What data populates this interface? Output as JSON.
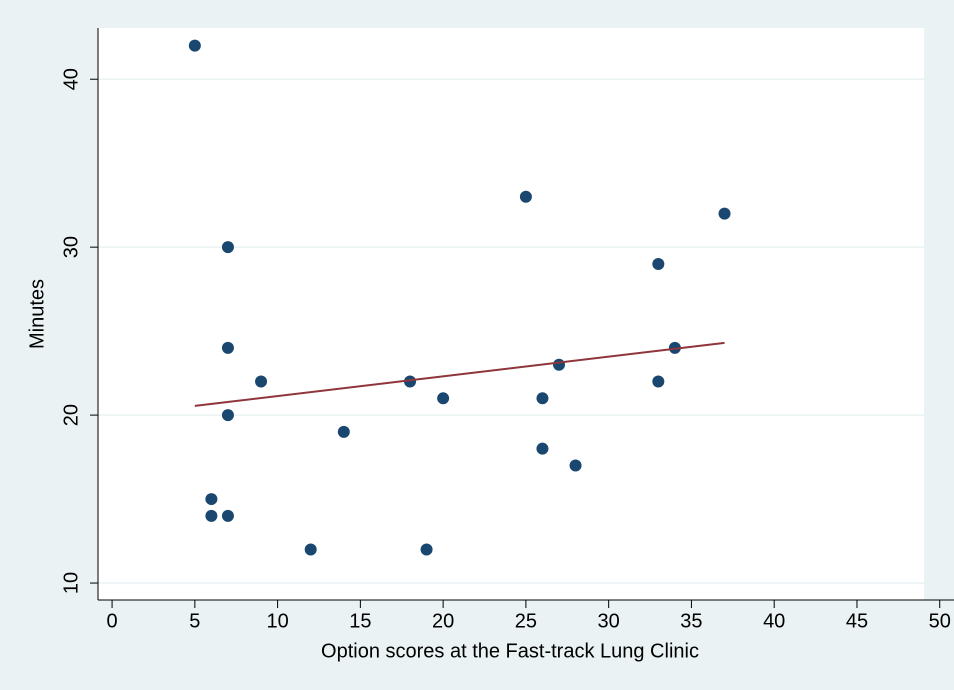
{
  "chart_data": {
    "type": "scatter",
    "xlabel": "Option scores at the Fast-track Lung Clinic",
    "ylabel": "Minutes",
    "x": [
      5,
      7,
      7,
      7,
      9,
      6,
      6,
      7,
      12,
      14,
      18,
      19,
      20,
      25,
      26,
      26,
      27,
      28,
      33,
      33,
      34,
      37
    ],
    "y": [
      42,
      30,
      24,
      20,
      22,
      15,
      14,
      14,
      12,
      19,
      22,
      12,
      21,
      33,
      21,
      18,
      23,
      17,
      29,
      22,
      24,
      32
    ],
    "color": "#1a476f",
    "fit": {
      "x": [
        5,
        37
      ],
      "y": [
        20.55,
        24.3
      ],
      "color": "#90353b"
    },
    "xlim": [
      -0.85,
      49.05
    ],
    "ylim": [
      8.99,
      43.05
    ],
    "xticks": [
      0,
      5,
      10,
      15,
      20,
      25,
      30,
      35,
      40,
      45,
      50
    ],
    "yticks": [
      10,
      20,
      30,
      40
    ],
    "grid": true
  }
}
